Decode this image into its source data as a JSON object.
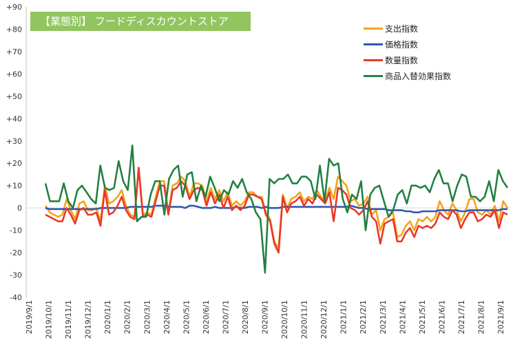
{
  "title": "【業態別】 フードディスカウントストア",
  "chart_data": {
    "type": "line",
    "title": "【業態別】 フードディスカウントストア",
    "ylim": [
      -40,
      90
    ],
    "yticks": [
      -40,
      -30,
      -20,
      -10,
      0,
      10,
      20,
      30,
      40,
      50,
      60,
      70,
      80,
      90
    ],
    "ytick_labels": [
      "-40",
      "-30",
      "-20",
      "-10",
      "0",
      "+10",
      "+20",
      "+30",
      "+40",
      "+50",
      "+60",
      "+70",
      "+80",
      "+90"
    ],
    "grid": false,
    "legend_position": "top-right",
    "x_labels": [
      "2019/9/1",
      "2019/10/1",
      "2019/11/1",
      "2019/12/1",
      "2020/1/1",
      "2020/2/1",
      "2020/3/1",
      "2020/4/1",
      "2020/5/1",
      "2020/6/1",
      "2020/7/1",
      "2020/8/1",
      "2020/9/1",
      "2020/10/1",
      "2020/11/1",
      "2020/12/1",
      "2021/1/1",
      "2021/2/1",
      "2021/3/1",
      "2021/4/1",
      "2021/5/1",
      "2021/6/1",
      "2021/7/1",
      "2021/8/1",
      "2021/9/1"
    ],
    "series": [
      {
        "name": "支出指数",
        "color": "#f5a31a",
        "values": [
          1,
          -2,
          -3,
          -4,
          -3,
          4,
          -1,
          -5,
          2,
          3,
          -1,
          -1,
          0,
          -6,
          10,
          2,
          3,
          5,
          8,
          1,
          -3,
          -4,
          18,
          -3,
          -2,
          -3,
          5,
          12,
          12,
          -2,
          10,
          11,
          14,
          12,
          5,
          11,
          11,
          10,
          3,
          9,
          4,
          8,
          3,
          7,
          1,
          3,
          1,
          3,
          7,
          7,
          5,
          5,
          -2,
          -5,
          -15,
          -18,
          6,
          0,
          4,
          5,
          7,
          3,
          5,
          4,
          8,
          5,
          3,
          9,
          4,
          14,
          12,
          10,
          3,
          4,
          1,
          2,
          5,
          -3,
          -1,
          -10,
          -5,
          -4,
          -2,
          -13,
          -12,
          -8,
          -6,
          -10,
          -5,
          -6,
          -4,
          -6,
          -4,
          3,
          -1,
          -3,
          2,
          -1,
          -6,
          -2,
          4,
          4,
          -2,
          -3,
          -1,
          -3,
          1,
          -6,
          3,
          0
        ]
      },
      {
        "name": "価格指数",
        "color": "#2f56b0",
        "values": [
          0,
          -0.5,
          -0.5,
          -0.5,
          -0.5,
          -0.5,
          -0.5,
          -0.5,
          -0.5,
          -0.5,
          -0.5,
          -0.5,
          -0.5,
          0,
          0,
          0,
          0,
          0,
          0,
          0,
          0.5,
          0.5,
          0.5,
          0.5,
          0.5,
          0.5,
          1,
          1,
          1,
          0.5,
          0.5,
          0.5,
          0.5,
          0,
          1,
          1,
          0.5,
          0,
          0,
          0,
          0.5,
          0,
          0,
          0,
          0,
          0.5,
          0,
          0,
          0.5,
          0.5,
          0.5,
          0,
          0.5,
          0,
          0,
          0,
          0.5,
          0.5,
          0.5,
          0.5,
          0.5,
          0.5,
          0.5,
          0.5,
          0.5,
          0.5,
          0.5,
          0.5,
          0.5,
          0.5,
          0.5,
          0.5,
          1,
          0.5,
          0,
          0,
          -0.5,
          -0.5,
          -0.5,
          -0.5,
          -0.5,
          -1,
          -1,
          -1,
          -1,
          -1.5,
          -1.5,
          -2,
          -2,
          -1.5,
          -1.5,
          -1.5,
          -1.5,
          -1,
          -1,
          -1,
          -1,
          -1,
          -1.5,
          -1.5,
          -1,
          -1,
          -1,
          -1,
          -1,
          -1,
          -1,
          -1,
          -0.5,
          -0.5
        ]
      },
      {
        "name": "数量指数",
        "color": "#e8382a",
        "values": [
          -3,
          -4,
          -5,
          -6,
          -6,
          0,
          -3,
          -7,
          -1,
          0,
          -3,
          -3,
          -2,
          -8,
          8,
          -3,
          -2,
          1,
          5,
          -1,
          -4,
          -5,
          18,
          -4,
          -3,
          -4,
          3,
          10,
          10,
          -3,
          8,
          9,
          12,
          10,
          4,
          8,
          9,
          8,
          1,
          7,
          2,
          6,
          0,
          5,
          -1,
          1,
          -1,
          1,
          6,
          6,
          5,
          4,
          -3,
          -6,
          -16,
          -20,
          5,
          -2,
          2,
          3,
          5,
          1,
          4,
          2,
          6,
          4,
          2,
          7,
          -6,
          9,
          8,
          6,
          0,
          -1,
          -3,
          -1,
          3,
          -4,
          -6,
          -16,
          -7,
          -6,
          -5,
          -15,
          -15,
          -11,
          -9,
          -13,
          -8,
          -9,
          -8,
          -9,
          -7,
          -2,
          -4,
          -5,
          -1,
          -3,
          -9,
          -5,
          -2,
          -2,
          -6,
          -5,
          -3,
          -4,
          -1,
          -9,
          -2,
          -3
        ]
      },
      {
        "name": "商品入替効果指数",
        "color": "#238042",
        "values": [
          11,
          3,
          3,
          3,
          11,
          3,
          0,
          8,
          10,
          7,
          4,
          2,
          19,
          9,
          8,
          9,
          21,
          12,
          8,
          28,
          -6,
          -4,
          -4,
          6,
          12,
          12,
          -3,
          13,
          17,
          19,
          5,
          15,
          16,
          3,
          10,
          5,
          14,
          9,
          3,
          8,
          6,
          12,
          9,
          13,
          7,
          4,
          -2,
          -5,
          -29,
          13,
          11,
          13,
          13,
          15,
          11,
          11,
          14,
          14,
          12,
          4,
          19,
          3,
          22,
          19,
          20,
          4,
          -2,
          6,
          4,
          12,
          -10,
          6,
          9,
          10,
          3,
          -4,
          -1,
          6,
          8,
          2,
          10,
          10,
          9,
          10,
          7,
          13,
          17,
          11,
          11,
          3,
          10,
          15,
          14,
          5,
          5,
          3,
          5,
          12,
          3,
          17,
          12,
          9
        ]
      }
    ]
  }
}
